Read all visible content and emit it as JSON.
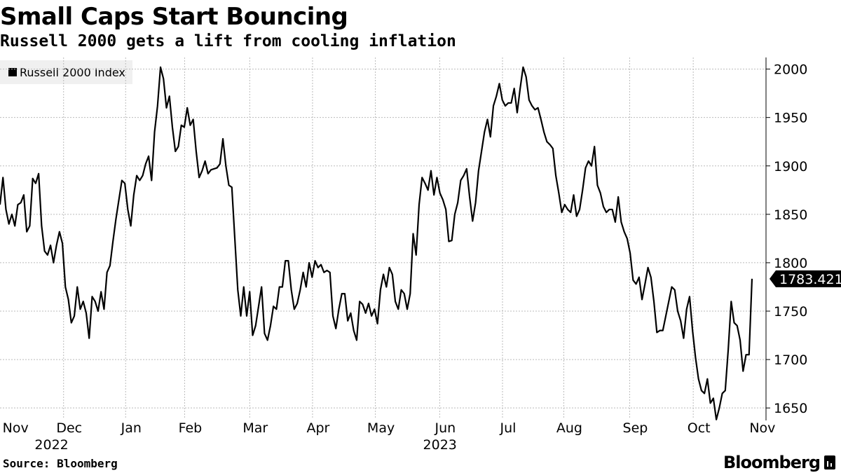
{
  "chart_data": {
    "type": "line",
    "title": "Small Caps Start Bouncing",
    "subtitle": "Russell 2000 gets a lift from cooling inflation",
    "legend": [
      "Russell 2000 Index"
    ],
    "series": [
      {
        "name": "Russell 2000 Index",
        "values": [
          1860,
          1888,
          1855,
          1840,
          1850,
          1838,
          1860,
          1862,
          1870,
          1832,
          1838,
          1887,
          1882,
          1892,
          1838,
          1812,
          1808,
          1818,
          1800,
          1818,
          1832,
          1820,
          1775,
          1762,
          1738,
          1745,
          1775,
          1752,
          1760,
          1748,
          1722,
          1765,
          1760,
          1750,
          1770,
          1752,
          1790,
          1797,
          1822,
          1845,
          1865,
          1885,
          1882,
          1855,
          1838,
          1870,
          1890,
          1885,
          1890,
          1902,
          1910,
          1885,
          1935,
          1962,
          2002,
          1990,
          1960,
          1972,
          1940,
          1915,
          1920,
          1942,
          1940,
          1960,
          1942,
          1948,
          1915,
          1888,
          1895,
          1905,
          1892,
          1896,
          1897,
          1898,
          1902,
          1928,
          1900,
          1880,
          1878,
          1825,
          1772,
          1745,
          1775,
          1745,
          1770,
          1725,
          1735,
          1755,
          1775,
          1727,
          1720,
          1735,
          1755,
          1752,
          1775,
          1775,
          1802,
          1802,
          1772,
          1752,
          1758,
          1772,
          1790,
          1775,
          1800,
          1785,
          1802,
          1795,
          1798,
          1790,
          1792,
          1790,
          1745,
          1732,
          1752,
          1768,
          1768,
          1740,
          1748,
          1730,
          1720,
          1760,
          1757,
          1748,
          1758,
          1745,
          1752,
          1737,
          1772,
          1788,
          1775,
          1795,
          1788,
          1760,
          1752,
          1772,
          1768,
          1752,
          1768,
          1830,
          1808,
          1860,
          1888,
          1882,
          1875,
          1895,
          1870,
          1888,
          1872,
          1865,
          1855,
          1822,
          1823,
          1850,
          1862,
          1885,
          1890,
          1897,
          1868,
          1843,
          1862,
          1895,
          1915,
          1935,
          1948,
          1930,
          1962,
          1972,
          1985,
          1968,
          1962,
          1965,
          1965,
          1980,
          1955,
          1980,
          2002,
          1992,
          1968,
          1962,
          1958,
          1960,
          1948,
          1935,
          1925,
          1922,
          1918,
          1890,
          1872,
          1852,
          1860,
          1855,
          1852,
          1870,
          1848,
          1855,
          1875,
          1898,
          1905,
          1900,
          1920,
          1880,
          1872,
          1858,
          1852,
          1855,
          1855,
          1842,
          1868,
          1842,
          1832,
          1825,
          1810,
          1782,
          1778,
          1785,
          1762,
          1778,
          1795,
          1785,
          1760,
          1728,
          1730,
          1730,
          1745,
          1760,
          1775,
          1772,
          1750,
          1740,
          1722,
          1752,
          1765,
          1730,
          1702,
          1680,
          1668,
          1665,
          1680,
          1655,
          1660,
          1638,
          1650,
          1665,
          1668,
          1710,
          1760,
          1738,
          1735,
          1720,
          1688,
          1705,
          1705,
          1783.421
        ]
      }
    ],
    "x_range": [
      "2022-11-01",
      "2023-11-10"
    ],
    "xticks": [
      {
        "label": "Nov",
        "frac": 0.013
      },
      {
        "label": "Dec",
        "frac": 0.083
      },
      {
        "label": "Jan",
        "frac": 0.164
      },
      {
        "label": "Feb",
        "frac": 0.241
      },
      {
        "label": "Mar",
        "frac": 0.326
      },
      {
        "label": "Apr",
        "frac": 0.408
      },
      {
        "label": "May",
        "frac": 0.49
      },
      {
        "label": "Jun",
        "frac": 0.574
      },
      {
        "label": "Jul",
        "frac": 0.656
      },
      {
        "label": "Aug",
        "frac": 0.736
      },
      {
        "label": "Sep",
        "frac": 0.822
      },
      {
        "label": "Oct",
        "frac": 0.905
      },
      {
        "label": "Nov",
        "frac": 0.988
      }
    ],
    "year_labels": [
      {
        "label": "2022",
        "frac": 0.06
      },
      {
        "label": "2023",
        "frac": 0.567
      }
    ],
    "yticks": [
      1650,
      1700,
      1750,
      1800,
      1850,
      1900,
      1950,
      2000
    ],
    "ylim": [
      1640,
      2012
    ],
    "last_value_label": "1783.421",
    "grid": true,
    "legend_position": "top-left",
    "line_color": "#000000"
  },
  "footer": {
    "source": "Source: Bloomberg",
    "brand": "Bloomberg"
  }
}
